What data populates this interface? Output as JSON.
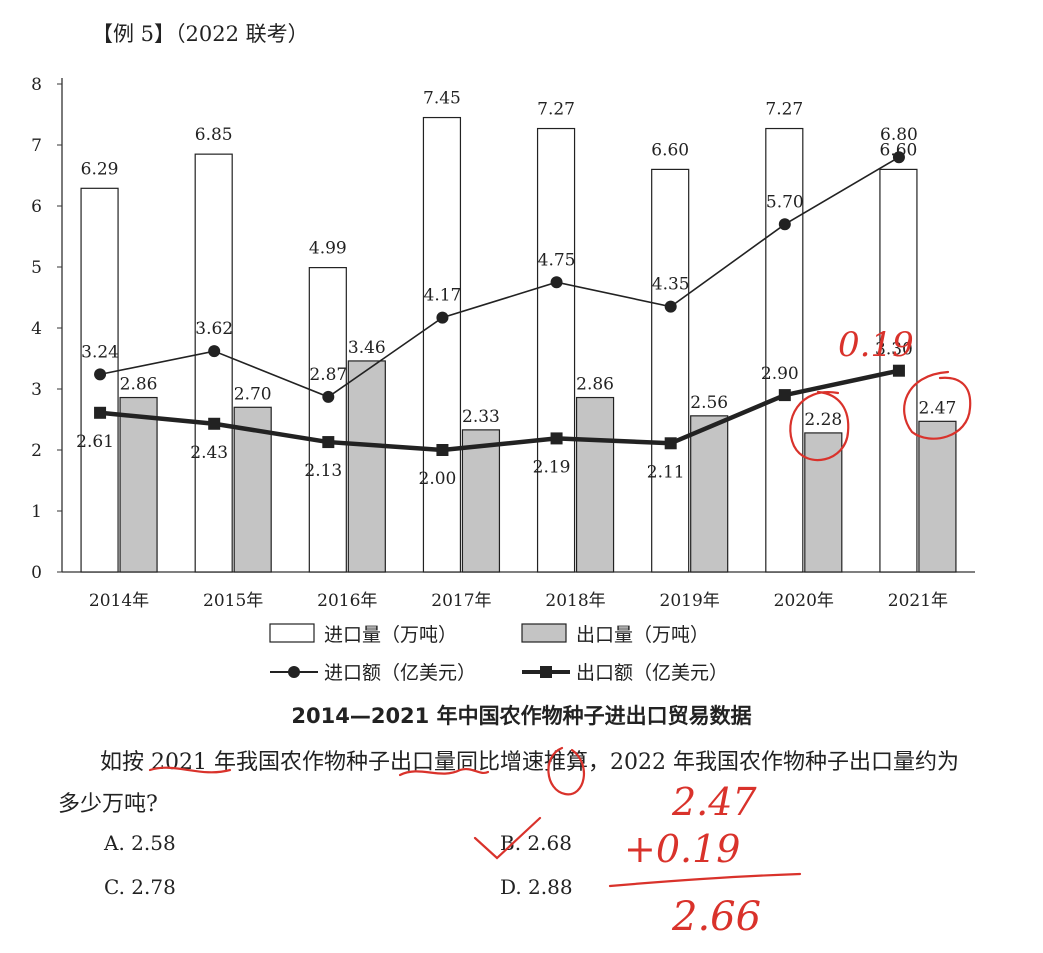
{
  "header": {
    "example_label": "【例 5】",
    "source": "（2022 联考）"
  },
  "chart_data": {
    "type": "bar",
    "title": "2014—2021 年中国农作物种子进出口贸易数据",
    "categories": [
      "2014年",
      "2015年",
      "2016年",
      "2017年",
      "2018年",
      "2019年",
      "2020年",
      "2021年"
    ],
    "ylim": [
      0,
      8
    ],
    "yticks": [
      "0",
      "1",
      "2",
      "3",
      "4",
      "5",
      "6",
      "7",
      "8"
    ],
    "grid": false,
    "legend_placement": "bottom",
    "series": [
      {
        "name": "进口量（万吨）",
        "type": "bar",
        "color": "#ffffff",
        "values": [
          6.29,
          6.85,
          4.99,
          7.45,
          7.27,
          6.6,
          7.27,
          6.6
        ],
        "labels": [
          "6.29",
          "6.85",
          "4.99",
          "7.45",
          "7.27",
          "6.60",
          "7.27",
          "6.60"
        ]
      },
      {
        "name": "出口量（万吨）",
        "type": "bar",
        "color": "#c4c4c4",
        "values": [
          2.86,
          2.7,
          3.46,
          2.33,
          2.86,
          2.56,
          2.28,
          2.47
        ],
        "labels": [
          "2.86",
          "2.70",
          "3.46",
          "2.33",
          "2.86",
          "2.56",
          "2.28",
          "2.47"
        ]
      },
      {
        "name": "进口额（亿美元）",
        "type": "line",
        "marker": "circle",
        "color": "#222222",
        "values": [
          3.24,
          3.62,
          2.87,
          4.17,
          4.75,
          4.35,
          5.7,
          6.8
        ],
        "labels": [
          "3.24",
          "3.62",
          "2.87",
          "4.17",
          "4.75",
          "4.35",
          "5.70",
          "6.80"
        ]
      },
      {
        "name": "出口额（亿美元）",
        "type": "line",
        "marker": "square",
        "color": "#222222",
        "values": [
          2.61,
          2.43,
          2.13,
          2.0,
          2.19,
          2.11,
          2.9,
          3.3
        ],
        "labels": [
          "2.61",
          "2.43",
          "2.13",
          "2.00",
          "2.19",
          "2.11",
          "2.90",
          "3.30"
        ]
      }
    ]
  },
  "question": {
    "text": "如按 2021 年我国农作物种子出口量同比增速推算，2022 年我国农作物种子出口量约为多少万吨?",
    "options": [
      "A. 2.58",
      "B. 2.68",
      "C. 2.78",
      "D. 2.88"
    ]
  },
  "handwriting": {
    "color": "#d9322b",
    "note_chart": "0.19",
    "calc_top": "2.47",
    "calc_add": "+0.19",
    "calc_result": "2.66"
  }
}
